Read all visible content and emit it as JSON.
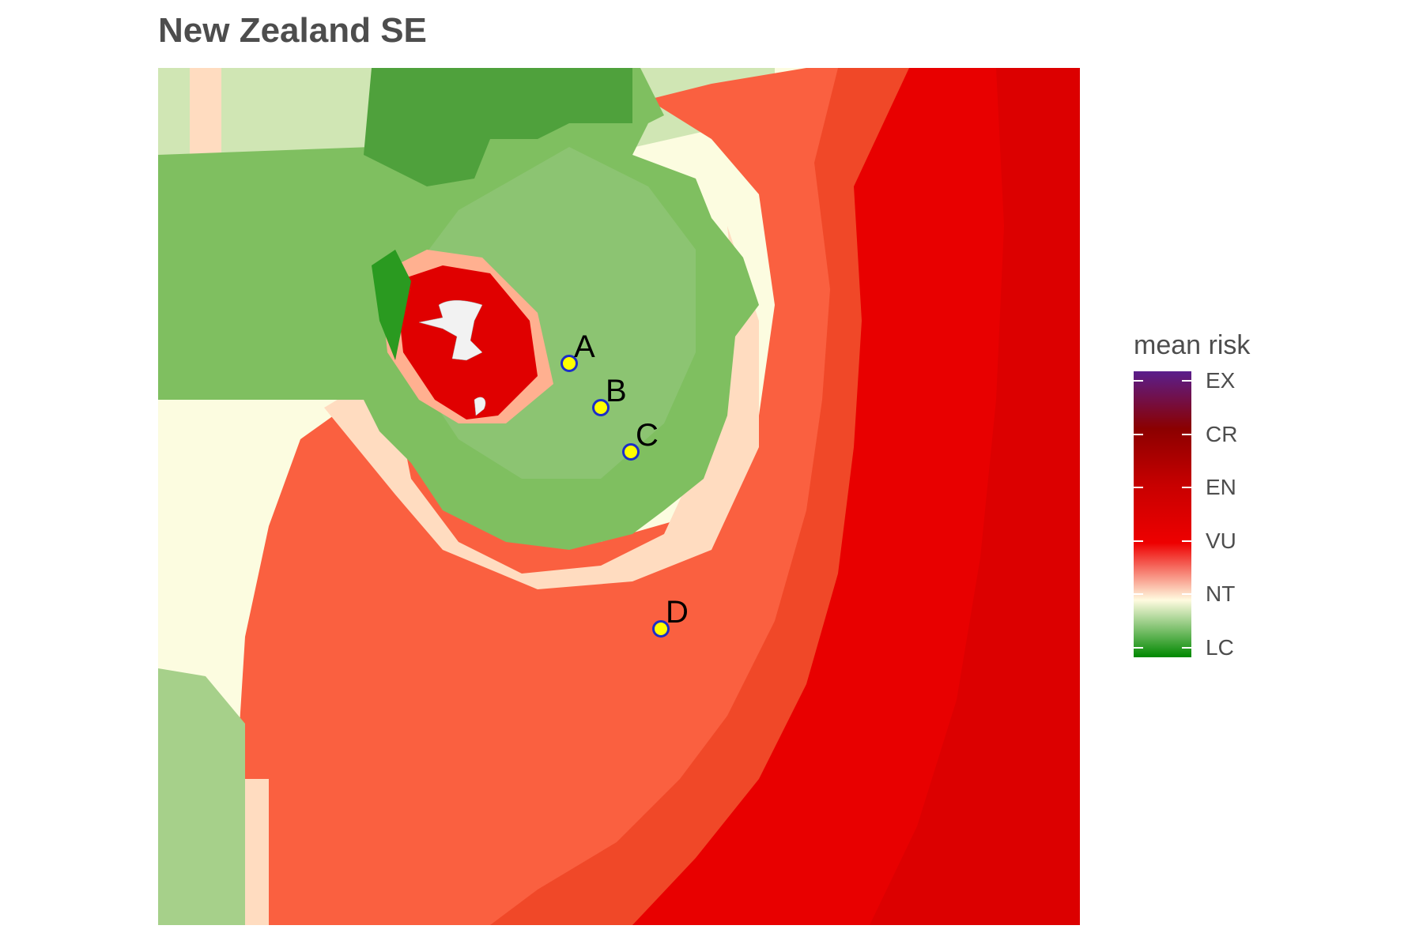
{
  "title": "New Zealand SE",
  "legend": {
    "title": "mean risk",
    "categories": [
      "EX",
      "CR",
      "EN",
      "VU",
      "NT",
      "LC"
    ],
    "stops": [
      {
        "label": "EX",
        "color": "#5a1e8c"
      },
      {
        "label": "CR",
        "color": "#8b0000"
      },
      {
        "label": "EN",
        "color": "#c80000"
      },
      {
        "label": "VU",
        "color": "#ee0000"
      },
      {
        "label": "NT",
        "color": "#fffbe0"
      },
      {
        "label": "LC",
        "color": "#008800"
      }
    ]
  },
  "colors": {
    "lc_green_dark": "#3a9a2a",
    "lc_green": "#7fbf60",
    "lc_green_light": "#c8e0a8",
    "nt_cream": "#fcfce0",
    "nt_peach": "#ffdcc0",
    "vu_orange": "#fa6040",
    "vu_orange_deep": "#f04828",
    "en_red": "#e80000",
    "en_red_deep": "#dc0000",
    "site_fill": "#ffff00",
    "site_stroke": "#1c2ec8",
    "land": "#f2f2f2"
  },
  "sites": [
    {
      "label": "A"
    },
    {
      "label": "B"
    },
    {
      "label": "C"
    },
    {
      "label": "D"
    }
  ]
}
